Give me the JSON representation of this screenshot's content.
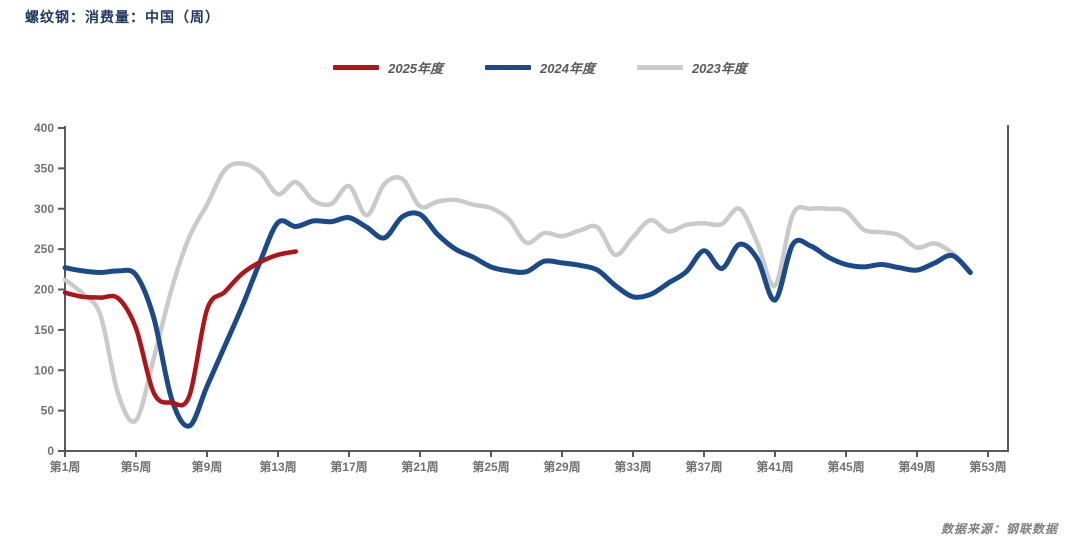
{
  "title": "螺纹钢：消费量：中国（周）",
  "source_note": "数据来源：钢联数据",
  "colors": {
    "red_2025": "#B01318",
    "blue_2024": "#1A4A8A",
    "gray_2023": "#CACACA",
    "title_text": "#1F3864",
    "axis_line": "#595959",
    "tick_label": "#737373",
    "legend_text": "#595959"
  },
  "legend": {
    "items": [
      {
        "label": "2025年度",
        "color": "#B01318"
      },
      {
        "label": "2024年度",
        "color": "#1A4A8A"
      },
      {
        "label": "2023年度",
        "color": "#CACACA"
      }
    ]
  },
  "chart_data": {
    "type": "line",
    "title": "螺纹钢：消费量：中国（周）",
    "xlabel": "",
    "ylabel": "",
    "ylim": [
      0,
      400
    ],
    "y_ticks": [
      0,
      50,
      100,
      150,
      200,
      250,
      300,
      350,
      400
    ],
    "x_tick_weeks": [
      1,
      5,
      9,
      13,
      17,
      21,
      25,
      29,
      33,
      37,
      41,
      45,
      49,
      53
    ],
    "x_tick_labels": [
      "第1周",
      "第5周",
      "第9周",
      "第13周",
      "第17周",
      "第21周",
      "第25周",
      "第29周",
      "第33周",
      "第37周",
      "第41周",
      "第45周",
      "第49周",
      "第53周"
    ],
    "x_range_weeks": [
      1,
      53
    ],
    "grid": false,
    "legend_position": "top-center",
    "series": [
      {
        "name": "2023年度",
        "color": "#CACACA",
        "start_week": 1,
        "values": [
          212,
          195,
          168,
          70,
          38,
          115,
          200,
          265,
          305,
          348,
          356,
          345,
          318,
          333,
          310,
          306,
          328,
          292,
          331,
          337,
          303,
          309,
          311,
          305,
          301,
          287,
          258,
          270,
          266,
          273,
          277,
          243,
          265,
          286,
          272,
          280,
          282,
          281,
          300,
          258,
          205,
          293,
          300,
          300,
          297,
          274,
          271,
          267,
          252,
          257,
          245,
          222
        ]
      },
      {
        "name": "2024年度",
        "color": "#1A4A8A",
        "start_week": 1,
        "values": [
          227,
          223,
          221,
          223,
          218,
          165,
          65,
          31,
          80,
          130,
          180,
          235,
          283,
          278,
          285,
          284,
          289,
          277,
          264,
          290,
          293,
          268,
          250,
          240,
          228,
          223,
          222,
          235,
          233,
          230,
          224,
          205,
          191,
          194,
          208,
          222,
          248,
          226,
          256,
          238,
          187,
          256,
          254,
          240,
          231,
          228,
          231,
          227,
          224,
          233,
          242,
          221
        ]
      },
      {
        "name": "2025年度",
        "color": "#B01318",
        "start_week": 1,
        "values": [
          196,
          191,
          190,
          189,
          152,
          72,
          60,
          68,
          175,
          197,
          220,
          234,
          243,
          247
        ]
      }
    ]
  }
}
